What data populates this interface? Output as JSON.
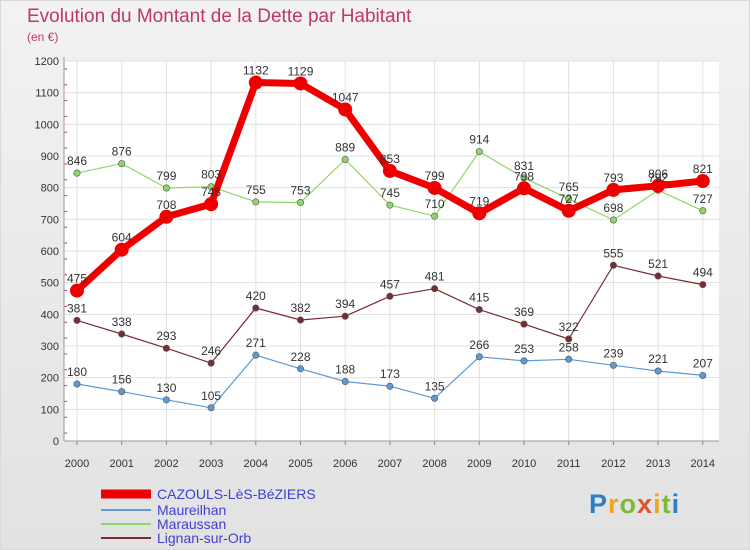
{
  "title": "Evolution du Montant de la Dette par Habitant",
  "unit": "(en €)",
  "logo": {
    "text": [
      "P",
      "r",
      "o",
      "x",
      "i",
      "t",
      "i"
    ]
  },
  "colors": {
    "title": "#c0366e",
    "cazouls": "#ee0000",
    "maureilhan": "#5b9bd5",
    "maraussan": "#8fd66a",
    "lignan": "#7a2c33"
  },
  "chart_data": {
    "type": "line",
    "title": "Evolution du Montant de la Dette par Habitant",
    "ylabel": "(en €)",
    "xlabel": "",
    "x": [
      "2000",
      "2001",
      "2002",
      "2003",
      "2004",
      "2005",
      "2006",
      "2007",
      "2008",
      "2009",
      "2010",
      "2011",
      "2012",
      "2013",
      "2014"
    ],
    "ylim": [
      0,
      1200
    ],
    "yticks": [
      0,
      100,
      200,
      300,
      400,
      500,
      600,
      700,
      800,
      900,
      1000,
      1100,
      1200
    ],
    "grid": true,
    "legend": "bottom-left",
    "series": [
      {
        "name": "CAZOULS-LèS-BéZIERS",
        "values": [
          475,
          604,
          708,
          748,
          1132,
          1129,
          1047,
          853,
          799,
          719,
          798,
          727,
          793,
          806,
          821
        ],
        "labels": [
          "475",
          "604",
          "708",
          "",
          "1132",
          "1129",
          "1047",
          "853",
          "799",
          "719",
          "",
          "",
          "793",
          "806",
          "821"
        ]
      },
      {
        "name": "Maureilhan",
        "values": [
          180,
          156,
          130,
          105,
          271,
          228,
          188,
          173,
          135,
          266,
          253,
          258,
          239,
          221,
          207
        ],
        "labels": [
          "180",
          "156",
          "130",
          "105",
          "271",
          "228",
          "188",
          "173",
          "135",
          "266",
          "253",
          "258",
          "239",
          "221",
          "207"
        ]
      },
      {
        "name": "Maraussan",
        "values": [
          846,
          876,
          799,
          803,
          755,
          753,
          889,
          745,
          710,
          914,
          831,
          765,
          698,
          792,
          727
        ],
        "labels": [
          "846",
          "876",
          "799",
          "803",
          "755",
          "753",
          "889",
          "745",
          "710",
          "914",
          "831",
          "765",
          "698",
          "",
          "727"
        ]
      },
      {
        "name": "Lignan-sur-Orb",
        "values": [
          381,
          338,
          293,
          246,
          420,
          382,
          394,
          457,
          481,
          415,
          369,
          322,
          555,
          521,
          494
        ],
        "labels": [
          "381",
          "338",
          "293",
          "246",
          "420",
          "382",
          "394",
          "457",
          "481",
          "415",
          "369",
          "322",
          "555",
          "521",
          "494"
        ]
      }
    ],
    "extra_labels": [
      "748",
      "798",
      "727",
      "792"
    ]
  }
}
